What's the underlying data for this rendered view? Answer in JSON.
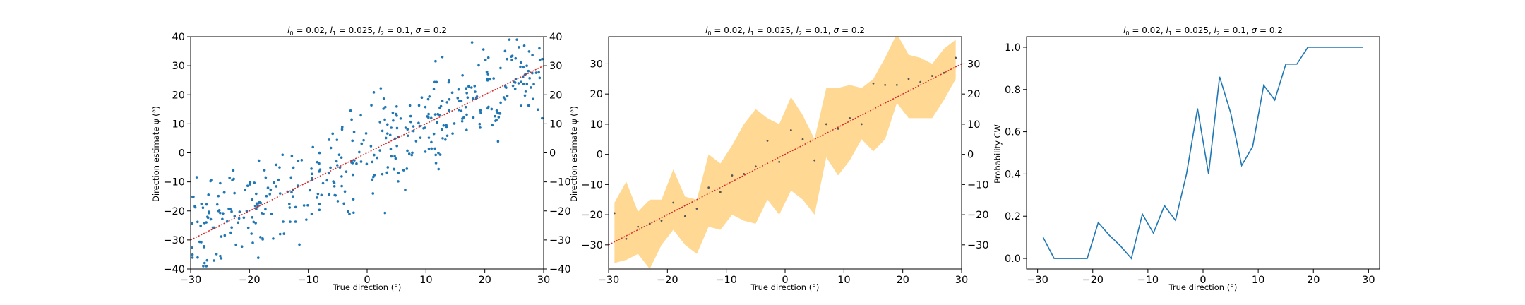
{
  "colors": {
    "scatter": "#1f77b4",
    "line": "#1f77b4",
    "identity": "#d62728",
    "band": "#ffc04c",
    "mean_points": "#555555",
    "axes": "#000000"
  },
  "chart_data": [
    {
      "type": "scatter",
      "title_parts": {
        "l0": "0.02",
        "l1": "0.025",
        "l2": "0.1",
        "sigma": "0.2"
      },
      "xlabel": "True direction (°)",
      "ylabel": "Direction estimate ψ (°)",
      "xlim": [
        -30,
        30
      ],
      "ylim": [
        -40,
        40
      ],
      "xticks": [
        -30,
        -20,
        -10,
        0,
        10,
        20,
        30
      ],
      "yticks": [
        -40,
        -30,
        -20,
        -10,
        0,
        10,
        20,
        30,
        40
      ],
      "right_yticks": [
        -40,
        -30,
        -20,
        -10,
        0,
        10,
        20,
        30,
        40
      ],
      "identity_line": [
        [
          -30,
          -30
        ],
        [
          30,
          30
        ]
      ],
      "n_points": 420
    },
    {
      "type": "area",
      "title_parts": {
        "l0": "0.02",
        "l1": "0.025",
        "l2": "0.1",
        "sigma": "0.2"
      },
      "xlabel": "True direction (°)",
      "ylabel": "Direction estimate ψ (°)",
      "xlim": [
        -30,
        30
      ],
      "ylim": [
        -38,
        39
      ],
      "xticks": [
        -30,
        -20,
        -10,
        0,
        10,
        20,
        30
      ],
      "yticks": [
        -30,
        -20,
        -10,
        0,
        10,
        20,
        30
      ],
      "right_yticks": [
        -30,
        -20,
        -10,
        0,
        10,
        20,
        30
      ],
      "identity_line": [
        [
          -30,
          -30
        ],
        [
          30,
          30
        ]
      ],
      "x": [
        -29,
        -27,
        -25,
        -23,
        -21,
        -19,
        -17,
        -15,
        -13,
        -11,
        -9,
        -7,
        -5,
        -3,
        -1,
        1,
        3,
        5,
        7,
        9,
        11,
        13,
        15,
        17,
        19,
        21,
        23,
        25,
        27,
        29
      ],
      "mean": [
        -19.5,
        -28,
        -24,
        -23,
        -22,
        -16,
        -20.5,
        -18,
        -11,
        -12.5,
        -7,
        -6.5,
        -4,
        4.5,
        -2.5,
        8,
        5,
        -2,
        10,
        8.5,
        12,
        10,
        23.5,
        23,
        23,
        25,
        24,
        26,
        27,
        32
      ],
      "lower": [
        -36,
        -35,
        -33,
        -38,
        -30,
        -25,
        -30,
        -33,
        -24,
        -25,
        -20,
        -22,
        -23,
        -15,
        -20,
        -12,
        -15,
        -20,
        -1,
        -7,
        -2,
        5,
        1,
        5,
        17,
        12,
        12,
        12,
        18,
        25
      ],
      "upper": [
        -16,
        -9,
        -19,
        -15,
        -15,
        -5,
        -14,
        -15,
        0,
        -3,
        3,
        10,
        15,
        12,
        10,
        19,
        13,
        5,
        22,
        22,
        23,
        22,
        25,
        32,
        40,
        33,
        32,
        30,
        35,
        38
      ]
    },
    {
      "type": "line",
      "title_parts": {
        "l0": "0.02",
        "l1": "0.025",
        "l2": "0.1",
        "sigma": "0.2"
      },
      "xlabel": "True direction (°)",
      "ylabel": "Probability CW",
      "xlim": [
        -32,
        32
      ],
      "ylim": [
        -0.05,
        1.05
      ],
      "xticks": [
        -30,
        -20,
        -10,
        0,
        10,
        20,
        30
      ],
      "yticks": [
        0.0,
        0.2,
        0.4,
        0.6,
        0.8,
        1.0
      ],
      "ytick_labels": [
        "0.0",
        "0.2",
        "0.4",
        "0.6",
        "0.8",
        "1.0"
      ],
      "x": [
        -29,
        -27,
        -25,
        -23,
        -21,
        -19,
        -17,
        -15,
        -13,
        -11,
        -9,
        -7,
        -5,
        -3,
        -1,
        1,
        3,
        5,
        7,
        9,
        11,
        13,
        15,
        17,
        19,
        21,
        23,
        25,
        27,
        29
      ],
      "values": [
        0.1,
        0.0,
        0.0,
        0.0,
        0.0,
        0.17,
        0.11,
        0.06,
        0.0,
        0.21,
        0.12,
        0.25,
        0.18,
        0.4,
        0.71,
        0.4,
        0.86,
        0.69,
        0.44,
        0.53,
        0.82,
        0.75,
        0.92,
        0.92,
        1.0,
        1.0,
        1.0,
        1.0,
        1.0,
        1.0
      ]
    }
  ]
}
